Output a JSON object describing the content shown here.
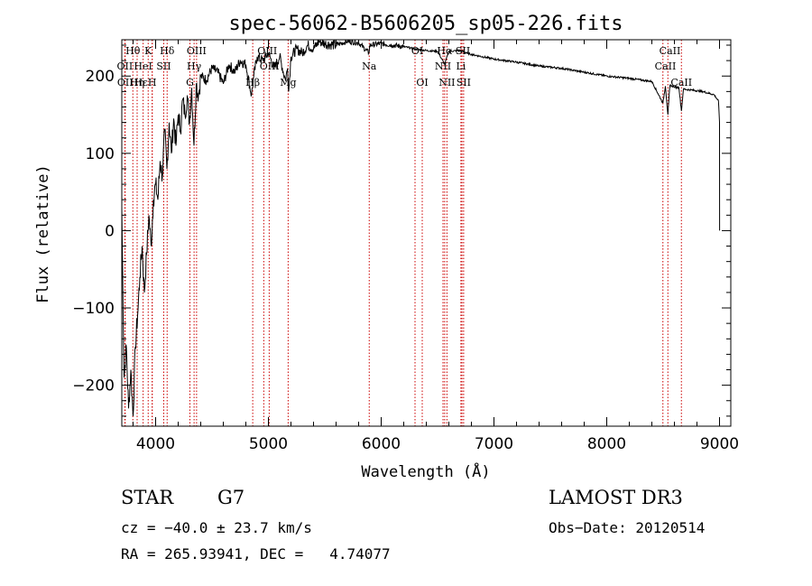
{
  "chart_data": {
    "type": "line",
    "title": "spec-56062-B5606205_sp05-226.fits",
    "xlabel": "Wavelength (Å)",
    "ylabel": "Flux (relative)",
    "xlim": [
      3700,
      9100
    ],
    "ylim": [
      -253,
      247
    ],
    "xticks": [
      4000,
      5000,
      6000,
      7000,
      8000,
      9000
    ],
    "yticks": [
      -200,
      -100,
      0,
      100,
      200
    ],
    "line_color": "#000000",
    "marker_color": "#cc0000",
    "series": [
      {
        "x": [
          3700,
          3720,
          3740,
          3760,
          3780,
          3800,
          3820,
          3840,
          3860,
          3880,
          3900,
          3920,
          3940,
          3960,
          3980,
          4000,
          4020,
          4040,
          4060,
          4080,
          4100,
          4120,
          4140,
          4160,
          4180,
          4200,
          4220,
          4240,
          4260,
          4280,
          4300,
          4320,
          4340,
          4360,
          4380,
          4400,
          4450,
          4500,
          4550,
          4600,
          4650,
          4700,
          4750,
          4800,
          4850,
          4870,
          4900,
          4950,
          5000,
          5050,
          5100,
          5150,
          5170,
          5180,
          5200,
          5250,
          5300,
          5350,
          5400,
          5450,
          5500,
          5600,
          5700,
          5800,
          5890,
          5900,
          6000,
          6100,
          6200,
          6300,
          6400,
          6500,
          6563,
          6600,
          6700,
          6800,
          7000,
          7200,
          7400,
          7600,
          7800,
          8000,
          8200,
          8400,
          8498,
          8520,
          8542,
          8560,
          8600,
          8640,
          8662,
          8680,
          8750,
          8850,
          8950,
          8990,
          9000,
          9001
        ],
        "y": [
          30,
          -190,
          -150,
          -230,
          -180,
          -240,
          -150,
          -110,
          -60,
          -20,
          -80,
          -30,
          20,
          -20,
          40,
          60,
          40,
          90,
          70,
          130,
          80,
          140,
          100,
          145,
          110,
          150,
          130,
          170,
          150,
          175,
          140,
          185,
          110,
          190,
          175,
          200,
          195,
          210,
          205,
          190,
          215,
          205,
          220,
          215,
          175,
          200,
          225,
          220,
          230,
          210,
          225,
          195,
          210,
          180,
          225,
          235,
          230,
          240,
          235,
          245,
          242,
          240,
          245,
          243,
          230,
          240,
          242,
          240,
          238,
          235,
          233,
          232,
          215,
          232,
          233,
          228,
          222,
          218,
          213,
          210,
          205,
          200,
          197,
          193,
          165,
          187,
          150,
          188,
          186,
          185,
          155,
          183,
          182,
          180,
          176,
          168,
          140,
          0
        ]
      }
    ],
    "lines": [
      {
        "name": "Hθ",
        "wl": 3798
      },
      {
        "name": "OII",
        "wl": 3727
      },
      {
        "name": "Hη",
        "wl": 3836
      },
      {
        "name": "OII",
        "wl": 3730
      },
      {
        "name": "HeI",
        "wl": 3889
      },
      {
        "name": "Hε",
        "wl": 3970
      },
      {
        "name": "K",
        "wl": 3934
      },
      {
        "name": "H",
        "wl": 3969
      },
      {
        "name": "SII",
        "wl": 4072
      },
      {
        "name": "Hδ",
        "wl": 4102
      },
      {
        "name": "OIII",
        "wl": 4363
      },
      {
        "name": "Hγ",
        "wl": 4341
      },
      {
        "name": "G",
        "wl": 4304
      },
      {
        "name": "Hβ",
        "wl": 4861
      },
      {
        "name": "OIII",
        "wl": 4959
      },
      {
        "name": "OIII",
        "wl": 5007
      },
      {
        "name": "Mg",
        "wl": 5175
      },
      {
        "name": "Na",
        "wl": 5894
      },
      {
        "name": "OI",
        "wl": 6300
      },
      {
        "name": "OI",
        "wl": 6364
      },
      {
        "name": "NII",
        "wl": 6548
      },
      {
        "name": "Hα",
        "wl": 6563
      },
      {
        "name": "NII",
        "wl": 6583
      },
      {
        "name": "Li",
        "wl": 6707
      },
      {
        "name": "SII",
        "wl": 6716
      },
      {
        "name": "SII",
        "wl": 6731
      },
      {
        "name": "CaII",
        "wl": 8498
      },
      {
        "name": "CaII",
        "wl": 8542
      },
      {
        "name": "CaII",
        "wl": 8662
      }
    ]
  },
  "labels": [
    {
      "text": "Hθ",
      "wl": 3798,
      "row": 0
    },
    {
      "text": "K",
      "wl": 3934,
      "row": 0
    },
    {
      "text": "Hδ",
      "wl": 4102,
      "row": 0
    },
    {
      "text": "OIII",
      "wl": 4363,
      "row": 0
    },
    {
      "text": "OIII",
      "wl": 4990,
      "row": 0
    },
    {
      "text": "OIII",
      "wl": 5010,
      "row": 1
    },
    {
      "text": "OI",
      "wl": 6320,
      "row": 0
    },
    {
      "text": "Hα",
      "wl": 6563,
      "row": 0
    },
    {
      "text": "SII",
      "wl": 6725,
      "row": 0
    },
    {
      "text": "CaII",
      "wl": 8560,
      "row": 0
    },
    {
      "text": "OII",
      "wl": 3727,
      "row": 1
    },
    {
      "text": "HeI",
      "wl": 3889,
      "row": 1
    },
    {
      "text": "SII",
      "wl": 4072,
      "row": 1
    },
    {
      "text": "Hγ",
      "wl": 4341,
      "row": 1
    },
    {
      "text": "Na",
      "wl": 5894,
      "row": 1
    },
    {
      "text": "NII",
      "wl": 6548,
      "row": 1
    },
    {
      "text": "Li",
      "wl": 6707,
      "row": 1
    },
    {
      "text": "CaII",
      "wl": 8520,
      "row": 1
    },
    {
      "text": "OII",
      "wl": 3730,
      "row": 2
    },
    {
      "text": "Hε",
      "wl": 3870,
      "row": 2
    },
    {
      "text": "Hη",
      "wl": 3836,
      "row": 2
    },
    {
      "text": "H",
      "wl": 3969,
      "row": 2
    },
    {
      "text": "G",
      "wl": 4304,
      "row": 2
    },
    {
      "text": "Hβ",
      "wl": 4861,
      "row": 2
    },
    {
      "text": "Mg",
      "wl": 5175,
      "row": 2
    },
    {
      "text": "OI",
      "wl": 6364,
      "row": 2
    },
    {
      "text": "NII",
      "wl": 6583,
      "row": 2
    },
    {
      "text": "SII",
      "wl": 6731,
      "row": 2
    },
    {
      "text": "CaII",
      "wl": 8662,
      "row": 2
    }
  ],
  "info": {
    "object_class": "STAR",
    "subclass": "G7",
    "survey": "LAMOST DR3",
    "cz": "cz = −40.0 ± 23.7 km/s",
    "obs_date": "Obs−Date: 20120514",
    "coords": "RA = 265.93941, DEC =   4.74077"
  }
}
